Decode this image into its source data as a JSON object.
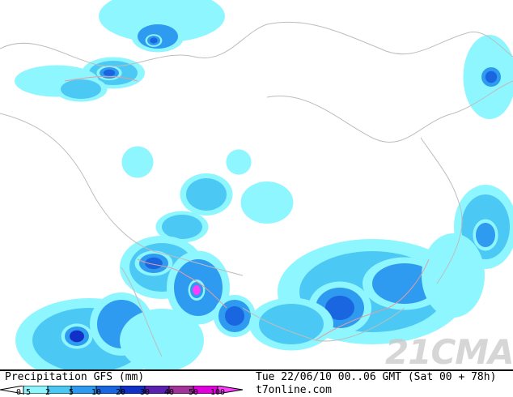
{
  "legend": {
    "title": "Precipitation GFS (mm)",
    "levels": [
      "0.5",
      "2",
      "5",
      "10",
      "20",
      "30",
      "40",
      "50",
      "100"
    ],
    "colors": [
      "#ffffff",
      "#8ef6ff",
      "#4cc8f4",
      "#2e9af0",
      "#1a66e0",
      "#1030c8",
      "#5a20b0",
      "#a03498",
      "#e000dc",
      "#ff3cff"
    ]
  },
  "valid_time": "Tue 22/06/10 00..06 GMT (Sat 00 + 78h)",
  "source": "t7online.com",
  "watermark": "21CMA",
  "colors": {
    "border": "#c8c8c8",
    "coast": "#e0a0a0"
  }
}
